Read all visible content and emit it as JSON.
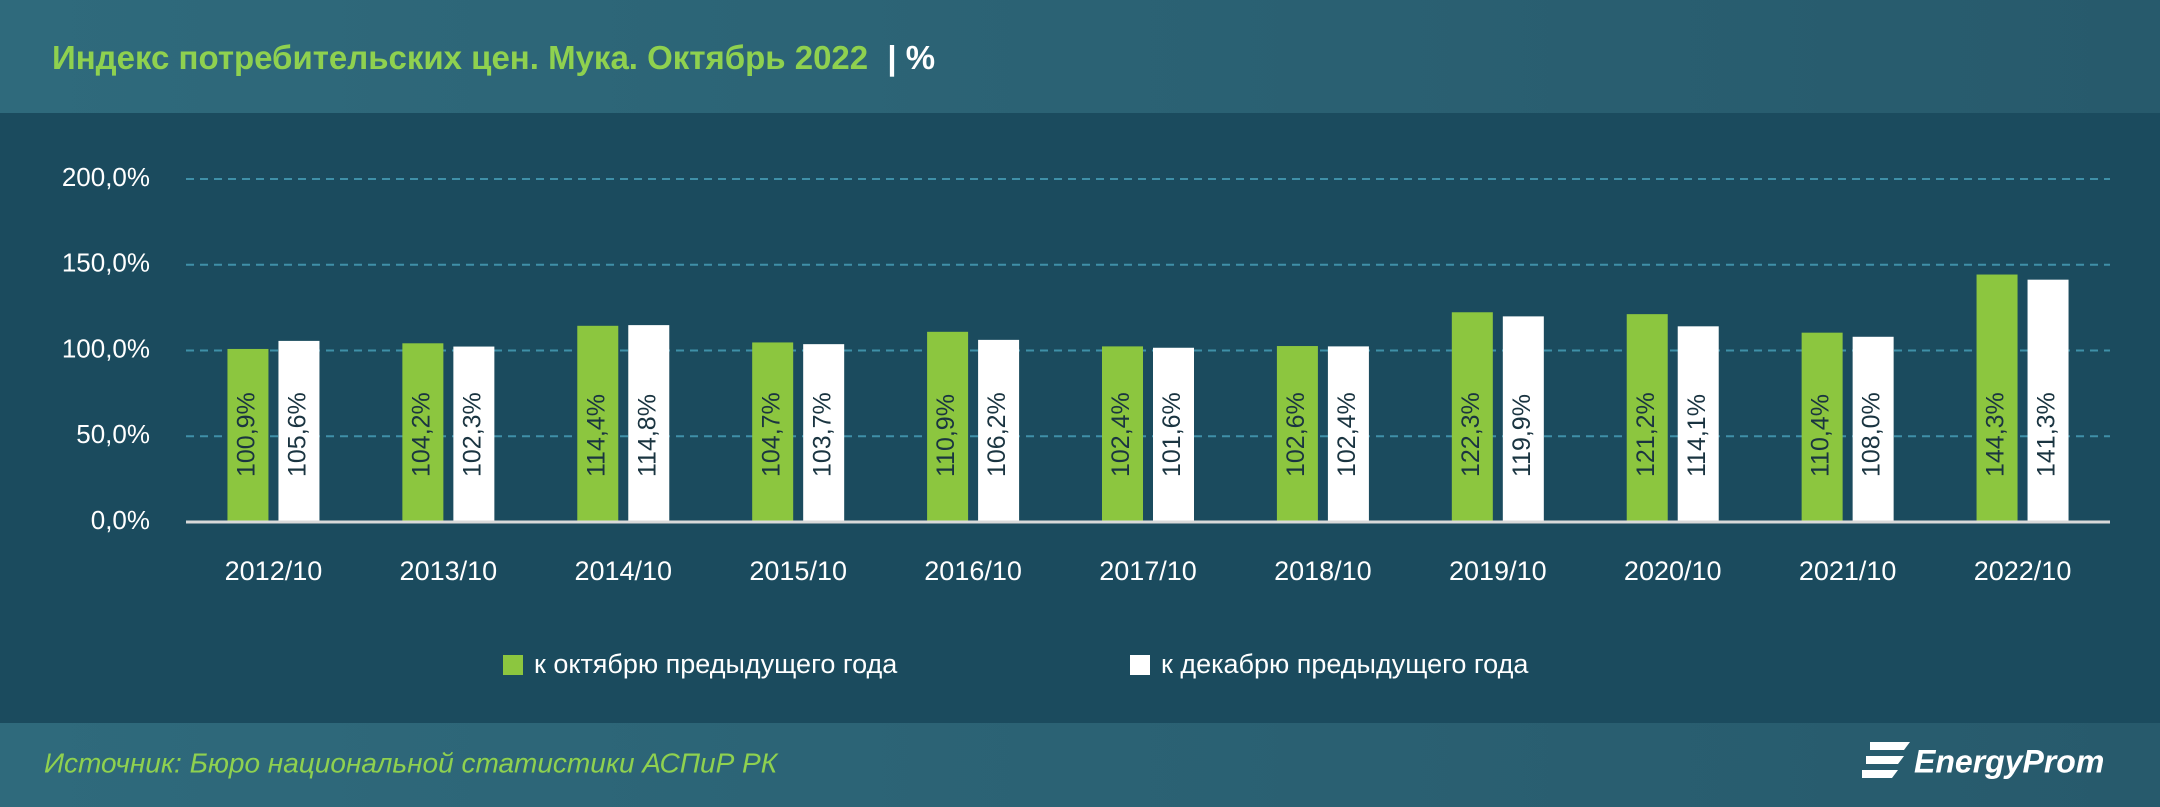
{
  "chart_data": {
    "type": "bar",
    "title": "Индекс потребительских цен. Мука. Октябрь 2022",
    "title_unit": "| %",
    "categories": [
      "2012/10",
      "2013/10",
      "2014/10",
      "2015/10",
      "2016/10",
      "2017/10",
      "2018/10",
      "2019/10",
      "2020/10",
      "2021/10",
      "2022/10"
    ],
    "series": [
      {
        "name": "к октябрю предыдущего года",
        "color": "#8cc63f",
        "values": [
          100.9,
          104.2,
          114.4,
          104.7,
          110.9,
          102.4,
          102.6,
          122.3,
          121.2,
          110.4,
          144.3
        ],
        "value_labels": [
          "100,9%",
          "104,2%",
          "114,4%",
          "104,7%",
          "110,9%",
          "102,4%",
          "102,6%",
          "122,3%",
          "121,2%",
          "110,4%",
          "144,3%"
        ]
      },
      {
        "name": "к декабрю предыдущего года",
        "color": "#ffffff",
        "values": [
          105.6,
          102.3,
          114.8,
          103.7,
          106.2,
          101.6,
          102.4,
          119.9,
          114.1,
          108.0,
          141.3
        ],
        "value_labels": [
          "105,6%",
          "102,3%",
          "114,8%",
          "103,7%",
          "106,2%",
          "101,6%",
          "102,4%",
          "119,9%",
          "114,1%",
          "108,0%",
          "141,3%"
        ]
      }
    ],
    "ylim": [
      0,
      200
    ],
    "yticks": [
      {
        "value": 0,
        "label": "0,0%"
      },
      {
        "value": 50,
        "label": "50,0%"
      },
      {
        "value": 100,
        "label": "100,0%"
      },
      {
        "value": 150,
        "label": "150,0%"
      },
      {
        "value": 200,
        "label": "200,0%"
      }
    ],
    "grid": true,
    "legend": "bottom",
    "source": "Источник: Бюро национальной статистики АСПиР РК",
    "logo": "EnergyProm"
  }
}
